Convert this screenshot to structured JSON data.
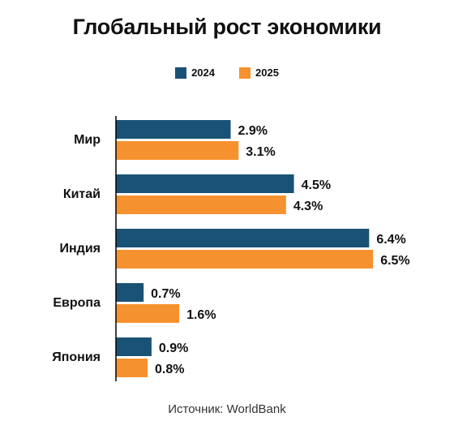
{
  "chart_data": {
    "type": "bar",
    "orientation": "horizontal",
    "title": "Глобальный рост экономики",
    "categories": [
      "Мир",
      "Китай",
      "Индия",
      "Европа",
      "Япония"
    ],
    "series": [
      {
        "name": "2024",
        "color": "#1a5276",
        "values": [
          2.9,
          4.5,
          6.4,
          0.7,
          0.9
        ],
        "labels": [
          "2.9%",
          "4.5%",
          "6.4%",
          "0.7%",
          "0.9%"
        ]
      },
      {
        "name": "2025",
        "color": "#f5922f",
        "values": [
          3.1,
          4.3,
          6.5,
          1.6,
          0.8
        ],
        "labels": [
          "3.1%",
          "4.3%",
          "6.5%",
          "1.6%",
          "0.8%"
        ]
      }
    ],
    "xlim": [
      0,
      6.5
    ],
    "legend_position": "top-center",
    "grid": false
  },
  "source": "Источник: WorldBank"
}
